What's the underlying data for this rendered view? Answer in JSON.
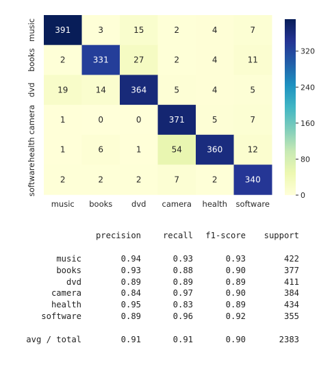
{
  "chart_data": {
    "type": "heatmap",
    "row_labels": [
      "music",
      "books",
      "dvd",
      "camera",
      "health",
      "software"
    ],
    "col_labels": [
      "music",
      "books",
      "dvd",
      "camera",
      "health",
      "software"
    ],
    "matrix": [
      [
        391,
        3,
        15,
        2,
        4,
        7
      ],
      [
        2,
        331,
        27,
        2,
        4,
        11
      ],
      [
        19,
        14,
        364,
        5,
        4,
        5
      ],
      [
        1,
        0,
        0,
        371,
        5,
        7
      ],
      [
        1,
        6,
        1,
        54,
        360,
        12
      ],
      [
        2,
        2,
        2,
        7,
        2,
        340
      ]
    ],
    "colorbar": {
      "min": 0,
      "max": 391,
      "ticks": [
        0,
        80,
        160,
        240,
        320
      ],
      "colormap": "YlGnBu"
    }
  },
  "report": {
    "headers": [
      "precision",
      "recall",
      "f1-score",
      "support"
    ],
    "rows": [
      {
        "label": "music",
        "values": [
          "0.94",
          "0.93",
          "0.93",
          "422"
        ]
      },
      {
        "label": "books",
        "values": [
          "0.93",
          "0.88",
          "0.90",
          "377"
        ]
      },
      {
        "label": "dvd",
        "values": [
          "0.89",
          "0.89",
          "0.89",
          "411"
        ]
      },
      {
        "label": "camera",
        "values": [
          "0.84",
          "0.97",
          "0.90",
          "384"
        ]
      },
      {
        "label": "health",
        "values": [
          "0.95",
          "0.83",
          "0.89",
          "434"
        ]
      },
      {
        "label": "software",
        "values": [
          "0.89",
          "0.96",
          "0.92",
          "355"
        ]
      }
    ],
    "total": {
      "label": "avg / total",
      "values": [
        "0.91",
        "0.91",
        "0.90",
        "2383"
      ]
    }
  }
}
